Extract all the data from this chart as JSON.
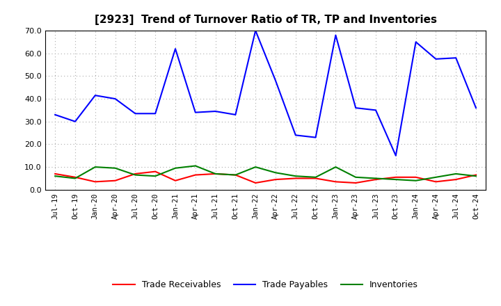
{
  "title": "[2923]  Trend of Turnover Ratio of TR, TP and Inventories",
  "x_labels": [
    "Jul-19",
    "Oct-19",
    "Jan-20",
    "Apr-20",
    "Jul-20",
    "Oct-20",
    "Jan-21",
    "Apr-21",
    "Jul-21",
    "Oct-21",
    "Jan-22",
    "Apr-22",
    "Jul-22",
    "Oct-22",
    "Jan-23",
    "Apr-23",
    "Jul-23",
    "Oct-23",
    "Jan-24",
    "Apr-24",
    "Jul-24",
    "Oct-24"
  ],
  "trade_receivables": [
    7.0,
    5.5,
    3.5,
    4.0,
    7.0,
    8.0,
    4.0,
    6.5,
    7.0,
    6.5,
    3.0,
    4.5,
    5.0,
    5.0,
    3.5,
    3.0,
    4.5,
    5.5,
    5.5,
    3.5,
    4.5,
    6.5
  ],
  "trade_payables": [
    33.0,
    30.0,
    41.5,
    40.0,
    33.5,
    33.5,
    62.0,
    34.0,
    34.5,
    33.0,
    70.0,
    48.0,
    24.0,
    23.0,
    68.0,
    36.0,
    35.0,
    15.0,
    65.0,
    57.5,
    58.0,
    36.0
  ],
  "inventories": [
    6.0,
    5.0,
    10.0,
    9.5,
    6.5,
    6.0,
    9.5,
    10.5,
    7.0,
    6.5,
    10.0,
    7.5,
    6.0,
    5.5,
    10.0,
    5.5,
    5.0,
    4.5,
    4.0,
    5.5,
    7.0,
    6.0
  ],
  "tr_color": "#ff0000",
  "tp_color": "#0000ff",
  "inv_color": "#008000",
  "ylim": [
    0.0,
    70.0
  ],
  "yticks": [
    0.0,
    10.0,
    20.0,
    30.0,
    40.0,
    50.0,
    60.0,
    70.0
  ],
  "background_color": "#ffffff",
  "grid_color": "#aaaaaa",
  "legend_labels": [
    "Trade Receivables",
    "Trade Payables",
    "Inventories"
  ]
}
